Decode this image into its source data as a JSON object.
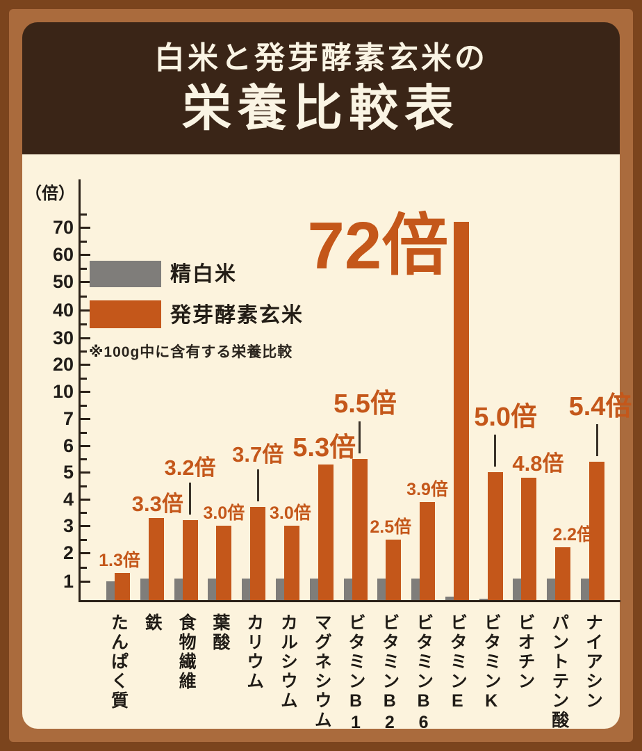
{
  "header": {
    "subtitle": "白米と発芽酵素玄米の",
    "title": "栄養比較表"
  },
  "legend": {
    "white_label": "精白米",
    "brown_label": "発芽酵素玄米",
    "note": "※100g中に含有する栄養比較"
  },
  "colors": {
    "orange": "#c4571a",
    "gray": "#7f7d7a",
    "header_bg": "#3a2517",
    "panel_bg": "#fcf3dd",
    "margin_bg": "#aa6b3d",
    "frame": "#7b441d",
    "axis": "#2b2118"
  },
  "chart_data": {
    "type": "bar",
    "title": "白米と発芽酵素玄米の栄養比較表",
    "unit_label": "（倍）",
    "value_suffix": "倍",
    "note": "※100g中に含有する栄養比較",
    "y_ticks": [
      1,
      2,
      3,
      4,
      5,
      6,
      7,
      10,
      20,
      30,
      40,
      50,
      60,
      70
    ],
    "ylim": [
      0,
      80
    ],
    "grid": false,
    "legend_position": "upper-left",
    "categories": [
      "たんぱく質",
      "鉄",
      "食物繊維",
      "葉酸",
      "カリウム",
      "カルシウム",
      "マグネシウム",
      "ビタミンB1",
      "ビタミンB2",
      "ビタミンB6",
      "ビタミンE",
      "ビタミンK",
      "ビオチン",
      "パントテン酸",
      "ナイアシン"
    ],
    "series": [
      {
        "name": "精白米",
        "color_key": "gray",
        "values": [
          1,
          1.1,
          1.1,
          1.1,
          1.1,
          1.1,
          1.1,
          1.1,
          1.1,
          1.1,
          0.25,
          0.05,
          1.1,
          1.1,
          1.1
        ]
      },
      {
        "name": "発芽酵素玄米",
        "color_key": "orange",
        "values": [
          1.3,
          3.3,
          3.2,
          3.0,
          3.7,
          3.0,
          5.3,
          5.5,
          2.5,
          3.9,
          72,
          5.0,
          4.8,
          2.2,
          5.4
        ]
      }
    ],
    "value_labels": [
      "1.3",
      "3.3",
      "3.2",
      "3.0",
      "3.7",
      "3.0",
      "5.3",
      "5.5",
      "2.5",
      "3.9",
      "72",
      "5.0",
      "4.8",
      "2.2",
      "5.4"
    ],
    "label_styles": [
      {
        "size": "s",
        "line": false,
        "dx": -4
      },
      {
        "size": "m",
        "line": false,
        "dx": 2
      },
      {
        "size": "m",
        "line": true,
        "dx": 0
      },
      {
        "size": "s",
        "line": false,
        "dx": 0
      },
      {
        "size": "m",
        "line": true,
        "dx": 0
      },
      {
        "size": "s",
        "line": false,
        "dx": -2
      },
      {
        "size": "l",
        "line": false,
        "dx": -2
      },
      {
        "size": "l",
        "line": true,
        "dx": 8
      },
      {
        "size": "s",
        "line": false,
        "dx": -4
      },
      {
        "size": "s",
        "line": false,
        "dx": 0
      },
      {
        "size": "xl",
        "line": false,
        "dx": -120,
        "bottom_y": 402
      },
      {
        "size": "l",
        "line": true,
        "dx": 15
      },
      {
        "size": "m",
        "line": false,
        "dx": 13
      },
      {
        "size": "s",
        "line": false,
        "dx": 15
      },
      {
        "size": "l",
        "line": true,
        "dx": 5
      }
    ]
  }
}
